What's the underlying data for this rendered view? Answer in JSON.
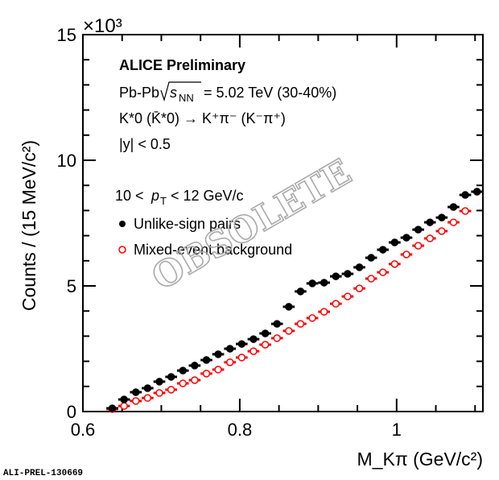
{
  "chart_data": {
    "type": "scatter",
    "xlabel": "M_Kπ (GeV/c²)",
    "ylabel": "Counts / (15 MeV/c²)",
    "y_multiplier": "×10³",
    "xlim": [
      0.6,
      1.11
    ],
    "ylim": [
      0,
      15000
    ],
    "x_ticks": [
      "0.6",
      "0.8",
      "1"
    ],
    "y_ticks": [
      "0",
      "5",
      "10",
      "15"
    ],
    "grid": false,
    "legend_position": "center-left",
    "x": [
      0.6375,
      0.6525,
      0.6675,
      0.6825,
      0.6975,
      0.7125,
      0.7275,
      0.7425,
      0.7575,
      0.7725,
      0.7875,
      0.8025,
      0.8175,
      0.8325,
      0.8475,
      0.8625,
      0.8775,
      0.8925,
      0.9075,
      0.9225,
      0.9375,
      0.9525,
      0.9675,
      0.9825,
      0.9975,
      1.0125,
      1.0275,
      1.0425,
      1.0575,
      1.0725,
      1.0875,
      1.1025
    ],
    "series": [
      {
        "name": "Unlike-sign pairs",
        "marker": "filled-circle",
        "color": "#000000",
        "values": [
          130,
          480,
          770,
          930,
          1190,
          1380,
          1630,
          1830,
          2050,
          2280,
          2500,
          2690,
          2880,
          3110,
          3490,
          4170,
          4780,
          5100,
          5130,
          5380,
          5480,
          5740,
          6120,
          6440,
          6730,
          6920,
          7240,
          7530,
          7720,
          8140,
          8620,
          8750
        ]
      },
      {
        "name": "Mixed-event background",
        "marker": "open-circle",
        "color": "#ff0000",
        "values": [
          100,
          220,
          420,
          540,
          740,
          870,
          1120,
          1250,
          1510,
          1670,
          1960,
          2150,
          2400,
          2660,
          2920,
          3210,
          3490,
          3720,
          3970,
          4290,
          4580,
          4900,
          5290,
          5540,
          5870,
          6250,
          6600,
          6890,
          7180,
          7530,
          7980,
          8750
        ]
      }
    ],
    "annotations": {
      "experiment": "ALICE Preliminary",
      "system_a": "Pb-Pb",
      "system_b": "s",
      "system_sub": "NN",
      "system_c": "= 5.02 TeV (30-40%)",
      "decay": "K*0 (K̄*0) → K⁺π⁻ (K⁻π⁺)",
      "rapidity": "|y| < 0.5",
      "pt_bin_a": "10 <",
      "pt_bin_p": "p",
      "pt_bin_sub": "T",
      "pt_bin_b": "< 12 GeV/c",
      "watermark": "OBSOLETE",
      "figure_id": "ALI-PREL-130669"
    }
  }
}
